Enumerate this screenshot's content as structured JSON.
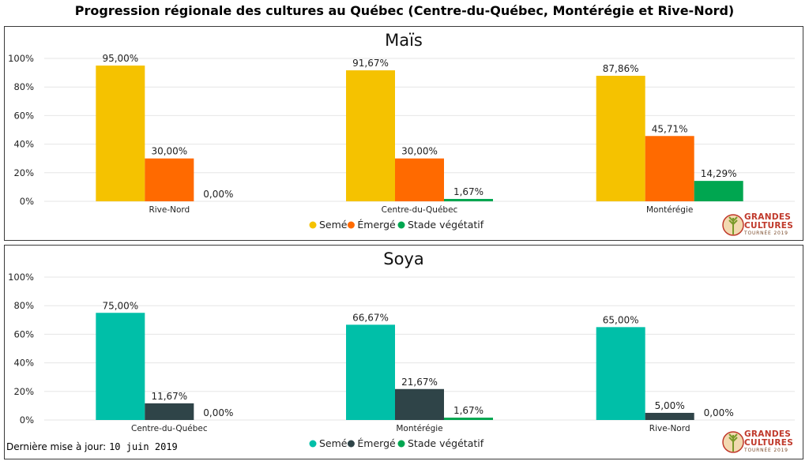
{
  "page_title": "Progression régionale des cultures au Québec (Centre-du-Québec, Montérégie et Rive-Nord)",
  "footer": {
    "label": "Dernière mise à jour:",
    "date": "10 juin 2019"
  },
  "logo": {
    "line1": "GRANDES",
    "line2": "CULTURES",
    "line3": "TOURNÉE 2019"
  },
  "chart_data": [
    {
      "type": "bar",
      "title": "Maïs",
      "categories": [
        "Rive-Nord",
        "Centre-du-Québec",
        "Montérégie"
      ],
      "ylim": [
        0,
        100
      ],
      "yticks": [
        "0%",
        "20%",
        "40%",
        "60%",
        "80%",
        "100%"
      ],
      "legend_position": "bottom",
      "grid": true,
      "series": [
        {
          "name": "Semé",
          "color": "#F5C200",
          "values": [
            95.0,
            91.67,
            87.86
          ],
          "labels": [
            "95,00%",
            "91,67%",
            "87,86%"
          ]
        },
        {
          "name": "Émergé",
          "color": "#FF6A00",
          "values": [
            30.0,
            30.0,
            45.71
          ],
          "labels": [
            "30,00%",
            "30,00%",
            "45,71%"
          ]
        },
        {
          "name": "Stade végétatif",
          "color": "#00A650",
          "values": [
            0.0,
            1.67,
            14.29
          ],
          "labels": [
            "0,00%",
            "1,67%",
            "14,29%"
          ]
        }
      ]
    },
    {
      "type": "bar",
      "title": "Soya",
      "categories": [
        "Centre-du-Québec",
        "Montérégie",
        "Rive-Nord"
      ],
      "ylim": [
        0,
        100
      ],
      "yticks": [
        "0%",
        "20%",
        "40%",
        "60%",
        "80%",
        "100%"
      ],
      "legend_position": "bottom",
      "grid": true,
      "series": [
        {
          "name": "Semé",
          "color": "#00BFA8",
          "values": [
            75.0,
            66.67,
            65.0
          ],
          "labels": [
            "75,00%",
            "66,67%",
            "65,00%"
          ]
        },
        {
          "name": "Émergé",
          "color": "#2F4448",
          "values": [
            11.67,
            21.67,
            5.0
          ],
          "labels": [
            "11,67%",
            "21,67%",
            "5,00%"
          ]
        },
        {
          "name": "Stade végétatif",
          "color": "#00A650",
          "values": [
            0.0,
            1.67,
            0.0
          ],
          "labels": [
            "0,00%",
            "1,67%",
            "0,00%"
          ]
        }
      ]
    }
  ]
}
